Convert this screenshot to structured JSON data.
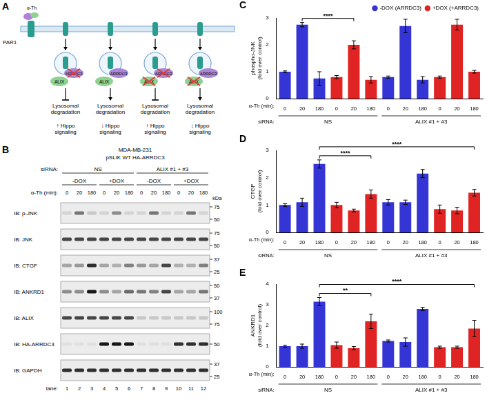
{
  "panel_a": {
    "label": "A",
    "receptor": "PAR1",
    "ligand": "α-Th",
    "columns": [
      {
        "arrdc3": "ARRDC3",
        "arrdc3_crossed": true,
        "alix": "ALIX",
        "alix_crossed": false,
        "degradation_blocked": true,
        "outcome": [
          "Lysosomal",
          "degradation"
        ],
        "hippo": [
          "↑ Hippo",
          "signaling"
        ]
      },
      {
        "arrdc3": "ARRDC3",
        "arrdc3_crossed": false,
        "alix": "ALIX",
        "alix_crossed": false,
        "degradation_blocked": false,
        "outcome": [
          "Lysosomal",
          "degradation"
        ],
        "hippo": [
          "↓ Hippo",
          "signaling"
        ]
      },
      {
        "arrdc3": "ARRDC3",
        "arrdc3_crossed": true,
        "alix": "ALIX",
        "alix_crossed": true,
        "degradation_blocked": true,
        "outcome": [
          "Lysosomal",
          "degradation"
        ],
        "hippo": [
          "↑ Hippo",
          "signaling"
        ]
      },
      {
        "arrdc3": "ARRDC3",
        "arrdc3_crossed": false,
        "alix": "ALIX",
        "alix_crossed": true,
        "degradation_blocked": false,
        "outcome": [
          "Lysosomal",
          "degradation"
        ],
        "hippo": [
          "↓ Hippo",
          "signaling"
        ]
      }
    ]
  },
  "panel_b": {
    "label": "B",
    "cell_line": "MDA-MB-231",
    "construct": "pSLIK WT HA-ARRDC3",
    "sirna_label": "siRNA:",
    "sirna_groups": [
      {
        "label": "NS",
        "lanes": 6
      },
      {
        "label": "ALIX #1 + #3",
        "lanes": 6
      }
    ],
    "dox_groups": [
      {
        "label": "-DOX",
        "lanes": 3
      },
      {
        "label": "+DOX",
        "lanes": 3
      },
      {
        "label": "-DOX",
        "lanes": 3
      },
      {
        "label": "+DOX",
        "lanes": 3
      }
    ],
    "time_label": "α-Th (min):",
    "times": [
      0,
      20,
      180,
      0,
      20,
      180,
      0,
      20,
      180,
      0,
      20,
      180
    ],
    "kda_label": "kDa",
    "lane_label": "lane:",
    "lanes": [
      1,
      2,
      3,
      4,
      5,
      6,
      7,
      8,
      9,
      10,
      11,
      12
    ],
    "blots": [
      {
        "label": "IB: p-JNK",
        "markers": [
          75,
          50
        ],
        "intensity": [
          0.1,
          0.5,
          0.15,
          0.1,
          0.4,
          0.1,
          0.1,
          0.5,
          0.1,
          0.1,
          0.5,
          0.1
        ]
      },
      {
        "label": "IB: JNK",
        "markers": [
          75,
          50
        ],
        "intensity": [
          0.7,
          0.7,
          0.7,
          0.7,
          0.7,
          0.7,
          0.7,
          0.7,
          0.7,
          0.7,
          0.7,
          0.7
        ]
      },
      {
        "label": "IB: CTGF",
        "markers": [
          37,
          25
        ],
        "intensity": [
          0.3,
          0.35,
          0.8,
          0.3,
          0.25,
          0.45,
          0.35,
          0.3,
          0.7,
          0.25,
          0.25,
          0.45
        ]
      },
      {
        "label": "IB: ANKRD1",
        "markers": [
          50,
          37
        ],
        "intensity": [
          0.4,
          0.4,
          0.9,
          0.4,
          0.3,
          0.55,
          0.5,
          0.45,
          0.7,
          0.3,
          0.3,
          0.5
        ]
      },
      {
        "label": "IB: ALIX",
        "markers": [
          100,
          75
        ],
        "intensity": [
          0.7,
          0.7,
          0.7,
          0.7,
          0.7,
          0.7,
          0.15,
          0.15,
          0.15,
          0.15,
          0.15,
          0.15
        ]
      },
      {
        "label": "IB: HA-ARRDC3",
        "markers": [
          50
        ],
        "intensity": [
          0.05,
          0.05,
          0.05,
          0.9,
          0.9,
          0.9,
          0.05,
          0.05,
          0.05,
          0.8,
          0.8,
          0.8
        ]
      },
      {
        "label": "IB: GAPDH",
        "markers": [
          37,
          25
        ],
        "intensity": [
          0.8,
          0.8,
          0.8,
          0.8,
          0.8,
          0.8,
          0.8,
          0.8,
          0.8,
          0.8,
          0.8,
          0.8
        ]
      }
    ]
  },
  "chart_data": [
    {
      "type": "bar",
      "panel": "C",
      "categories": [
        "0",
        "20",
        "180",
        "0",
        "20",
        "180",
        "0",
        "20",
        "180",
        "0",
        "20",
        "180"
      ],
      "x_label": "α-Th (min):",
      "group_label": "siRNA:",
      "groups": [
        {
          "label": "NS",
          "categories": 6
        },
        {
          "label": "ALIX #1 + #3",
          "categories": 6
        }
      ],
      "y_label": [
        "phospho-JNK",
        "(fold over control)"
      ],
      "ylim": [
        0,
        3
      ],
      "yticks": [
        0,
        1,
        2,
        3
      ],
      "grid": false,
      "legend": "top right",
      "series": [
        {
          "name": "-DOX (ARRDC3)",
          "color": "#3535d6",
          "values": [
            1.0,
            2.75,
            0.75,
            null,
            null,
            null,
            0.8,
            2.7,
            0.7,
            null,
            null,
            null
          ],
          "errors": [
            0.03,
            0.08,
            0.25,
            null,
            null,
            null,
            0.04,
            0.25,
            0.12,
            null,
            null,
            null
          ]
        },
        {
          "name": "+DOX (+ARRDC3)",
          "color": "#e02424",
          "values": [
            null,
            null,
            null,
            0.8,
            2.0,
            0.7,
            null,
            null,
            null,
            0.8,
            2.75,
            1.0
          ],
          "errors": [
            null,
            null,
            null,
            0.06,
            0.15,
            0.12,
            null,
            null,
            null,
            0.04,
            0.2,
            0.05
          ]
        }
      ],
      "annotations": [
        {
          "from": 1,
          "to": 4,
          "text": "****"
        }
      ]
    },
    {
      "type": "bar",
      "panel": "D",
      "categories": [
        "0",
        "20",
        "180",
        "0",
        "20",
        "180",
        "0",
        "20",
        "180",
        "0",
        "20",
        "180"
      ],
      "x_label": "α-Th (min):",
      "group_label": "siRNA:",
      "groups": [
        {
          "label": "NS",
          "categories": 6
        },
        {
          "label": "ALIX #1 + #3",
          "categories": 6
        }
      ],
      "y_label": [
        "CTGF",
        "(fold over control)"
      ],
      "ylim": [
        0,
        3
      ],
      "yticks": [
        0,
        1,
        2,
        3
      ],
      "grid": false,
      "series": [
        {
          "name": "-DOX (ARRDC3)",
          "color": "#3535d6",
          "values": [
            1.0,
            1.1,
            2.5,
            null,
            null,
            null,
            1.1,
            1.1,
            2.15,
            null,
            null,
            null
          ],
          "errors": [
            0.05,
            0.15,
            0.15,
            null,
            null,
            null,
            0.1,
            0.08,
            0.15,
            null,
            null,
            null
          ]
        },
        {
          "name": "+DOX (+ARRDC3)",
          "color": "#e02424",
          "values": [
            null,
            null,
            null,
            1.0,
            0.8,
            1.4,
            null,
            null,
            null,
            0.85,
            0.8,
            1.45
          ],
          "errors": [
            null,
            null,
            null,
            0.1,
            0.05,
            0.15,
            null,
            null,
            null,
            0.15,
            0.12,
            0.12
          ]
        }
      ],
      "annotations": [
        {
          "from": 2,
          "to": 5,
          "text": "****"
        },
        {
          "from": 2,
          "to": 11,
          "text": "****"
        }
      ]
    },
    {
      "type": "bar",
      "panel": "E",
      "categories": [
        "0",
        "20",
        "180",
        "0",
        "20",
        "180",
        "0",
        "20",
        "180",
        "0",
        "20",
        "180"
      ],
      "x_label": "α-Th (min):",
      "group_label": "siRNA:",
      "groups": [
        {
          "label": "NS",
          "categories": 6
        },
        {
          "label": "ALIX #1 + #3",
          "categories": 6
        }
      ],
      "y_label": [
        "ANKRD1",
        "(fold over control)"
      ],
      "ylim": [
        0,
        4
      ],
      "yticks": [
        0,
        1,
        2,
        3,
        4
      ],
      "grid": false,
      "series": [
        {
          "name": "-DOX (ARRDC3)",
          "color": "#3535d6",
          "values": [
            1.0,
            1.0,
            3.15,
            null,
            null,
            null,
            1.25,
            1.2,
            2.8,
            null,
            null,
            null
          ],
          "errors": [
            0.05,
            0.1,
            0.2,
            null,
            null,
            null,
            0.05,
            0.2,
            0.08,
            null,
            null,
            null
          ]
        },
        {
          "name": "+DOX (+ARRDC3)",
          "color": "#e02424",
          "values": [
            null,
            null,
            null,
            1.05,
            0.9,
            2.2,
            null,
            null,
            null,
            0.95,
            0.95,
            1.85
          ],
          "errors": [
            null,
            null,
            null,
            0.15,
            0.08,
            0.35,
            null,
            null,
            null,
            0.05,
            0.05,
            0.4
          ]
        }
      ],
      "annotations": [
        {
          "from": 2,
          "to": 5,
          "text": "**"
        },
        {
          "from": 2,
          "to": 11,
          "text": "****"
        }
      ]
    }
  ]
}
